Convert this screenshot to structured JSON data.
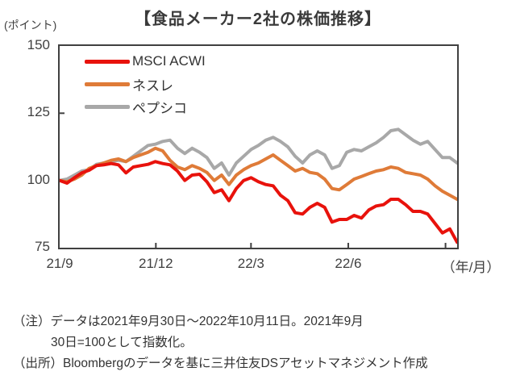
{
  "title": "【食品メーカー2社の株価推移】",
  "y_axis_unit": "(ポイント)",
  "x_axis_unit": "（年/月）",
  "notes": [
    "（注）データは2021年9月30日～2022年10月11日。2021年9月",
    "30日=100として指数化。",
    "（出所）Bloombergのデータを基に三井住友DSアセットマネジメント作成"
  ],
  "chart_data": {
    "type": "line",
    "title": "食品メーカー2社の株価推移",
    "ylabel": "ポイント",
    "ylim": [
      75,
      150
    ],
    "yticks": [
      150,
      125,
      100,
      75
    ],
    "grid": false,
    "legend_position": "top-left-inside",
    "x_unit": "weekly samples, 2021/9/30 - 2022/10/11, indexed 2021/9/30 = 100",
    "total_days": 376,
    "xticks": [
      {
        "label": "21/9",
        "day": 0
      },
      {
        "label": "21/12",
        "day": 91
      },
      {
        "label": "22/3",
        "day": 181
      },
      {
        "label": "22/6",
        "day": 273
      },
      {
        "label": "",
        "day": 365
      }
    ],
    "series": [
      {
        "name": "MSCI ACWI",
        "slug": "msci-acwi",
        "color": "#e8120c",
        "values": [
          100,
          99,
          101,
          102.8,
          103.8,
          105.5,
          105.8,
          106.3,
          105.8,
          102.8,
          105,
          105.5,
          106,
          107,
          106.3,
          105.8,
          103.5,
          100,
          102,
          102.3,
          99.5,
          95.5,
          96.5,
          92.5,
          97,
          100,
          101,
          99.5,
          98.5,
          98,
          94.5,
          92.5,
          88,
          87.5,
          90,
          91.5,
          90,
          84.5,
          85.5,
          85.5,
          87,
          86,
          89,
          90.5,
          91,
          93,
          93,
          91,
          88.5,
          88.5,
          87.5,
          84,
          80.5,
          82,
          77
        ]
      },
      {
        "name": "ネスレ",
        "slug": "nestle",
        "color": "#df7b38",
        "values": [
          100,
          99.5,
          100.5,
          102,
          104.5,
          105.5,
          106.5,
          107.5,
          108,
          107,
          108.5,
          109.5,
          110.5,
          112,
          111,
          107.5,
          105,
          104,
          105.5,
          104.5,
          103,
          100,
          102,
          98.5,
          102,
          104,
          105.5,
          106.5,
          108,
          109.5,
          107.5,
          105.5,
          103.5,
          104.5,
          103,
          102.5,
          100.5,
          97,
          96.5,
          98.5,
          100.5,
          101.5,
          102.5,
          103.5,
          104,
          105,
          104.5,
          103,
          102.5,
          102,
          100.5,
          98,
          96,
          94.5,
          93
        ]
      },
      {
        "name": "ペプシコ",
        "slug": "pepsico",
        "color": "#a8a8a8",
        "values": [
          100,
          100.5,
          102,
          103.5,
          104,
          106,
          106.5,
          107,
          107.5,
          107,
          109,
          111,
          113,
          113.5,
          114.5,
          115,
          112,
          110,
          112,
          110.5,
          108.5,
          104.5,
          106.5,
          102,
          106.5,
          109,
          111.5,
          113,
          115,
          116,
          114.5,
          112.5,
          109,
          106.5,
          109.5,
          111,
          109.5,
          104.5,
          105.5,
          110.5,
          111.5,
          111,
          112.5,
          114,
          116,
          118.5,
          119,
          117,
          115,
          113.5,
          114.5,
          111.5,
          108.5,
          108.5,
          106.5
        ]
      }
    ]
  }
}
